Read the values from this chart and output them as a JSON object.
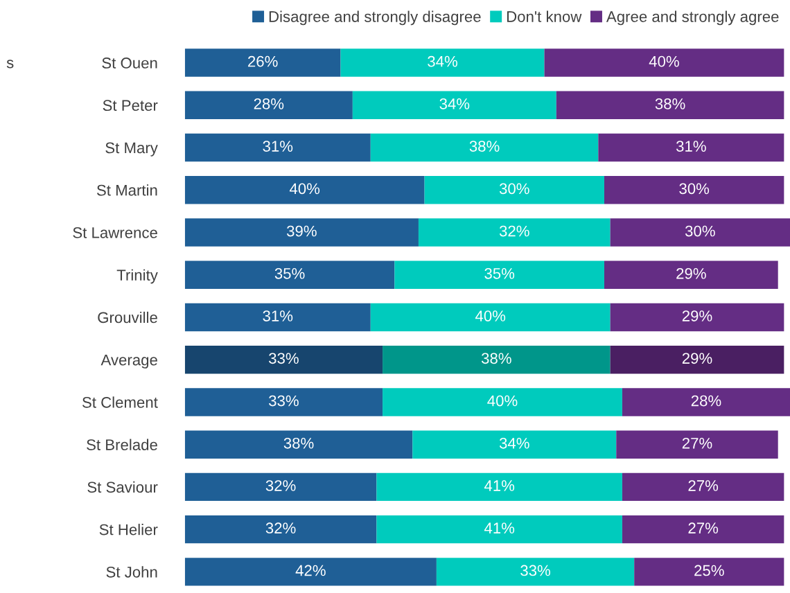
{
  "chart_data": {
    "type": "bar",
    "orientation": "horizontal",
    "stacked": true,
    "tick_labels": "y",
    "legend": "top right",
    "grid": false,
    "annotations": [
      "s"
    ],
    "categories": [
      "St Ouen",
      "St Peter",
      "St Mary",
      "St Martin",
      "St Lawrence",
      "Trinity",
      "Grouville",
      "Average",
      "St Clement",
      "St Brelade",
      "St Saviour",
      "St Helier",
      "St John"
    ],
    "series": [
      {
        "name": "Disagree and strongly disagree",
        "color": "#1f5f96",
        "colors": [
          "#1f5f96",
          "#1f5f96",
          "#1f5f96",
          "#1f5f96",
          "#1f5f96",
          "#1f5f96",
          "#1f5f96",
          "#17456e",
          "#1f5f96",
          "#1f5f96",
          "#1f5f96",
          "#1f5f96",
          "#1f5f96"
        ],
        "values": [
          26,
          28,
          31,
          40,
          39,
          35,
          31,
          33,
          33,
          38,
          32,
          32,
          42
        ],
        "value_labels": [
          "26%",
          "28%",
          "31%",
          "40%",
          "39%",
          "35%",
          "31%",
          "33%",
          "33%",
          "38%",
          "32%",
          "32%",
          "42%"
        ]
      },
      {
        "name": "Don't know",
        "color": "#00cbbd",
        "colors": [
          "#00cbbd",
          "#00cbbd",
          "#00cbbd",
          "#00cbbd",
          "#00cbbd",
          "#00cbbd",
          "#00cbbd",
          "#00968a",
          "#00cbbd",
          "#00cbbd",
          "#00cbbd",
          "#00cbbd",
          "#00cbbd"
        ],
        "values": [
          34,
          34,
          38,
          30,
          32,
          35,
          40,
          38,
          40,
          34,
          41,
          41,
          33
        ],
        "value_labels": [
          "34%",
          "34%",
          "38%",
          "30%",
          "32%",
          "35%",
          "40%",
          "38%",
          "40%",
          "34%",
          "41%",
          "41%",
          "33%"
        ]
      },
      {
        "name": "Agree and strongly agree",
        "color": "#642d84",
        "colors": [
          "#642d84",
          "#642d84",
          "#642d84",
          "#642d84",
          "#642d84",
          "#642d84",
          "#642d84",
          "#4a1f62",
          "#642d84",
          "#642d84",
          "#642d84",
          "#642d84",
          "#642d84"
        ],
        "values": [
          40,
          38,
          31,
          30,
          30,
          29,
          29,
          29,
          28,
          27,
          27,
          27,
          25
        ],
        "value_labels": [
          "40%",
          "38%",
          "31%",
          "30%",
          "30%",
          "29%",
          "29%",
          "29%",
          "28%",
          "27%",
          "27%",
          "27%",
          "25%"
        ]
      }
    ]
  }
}
